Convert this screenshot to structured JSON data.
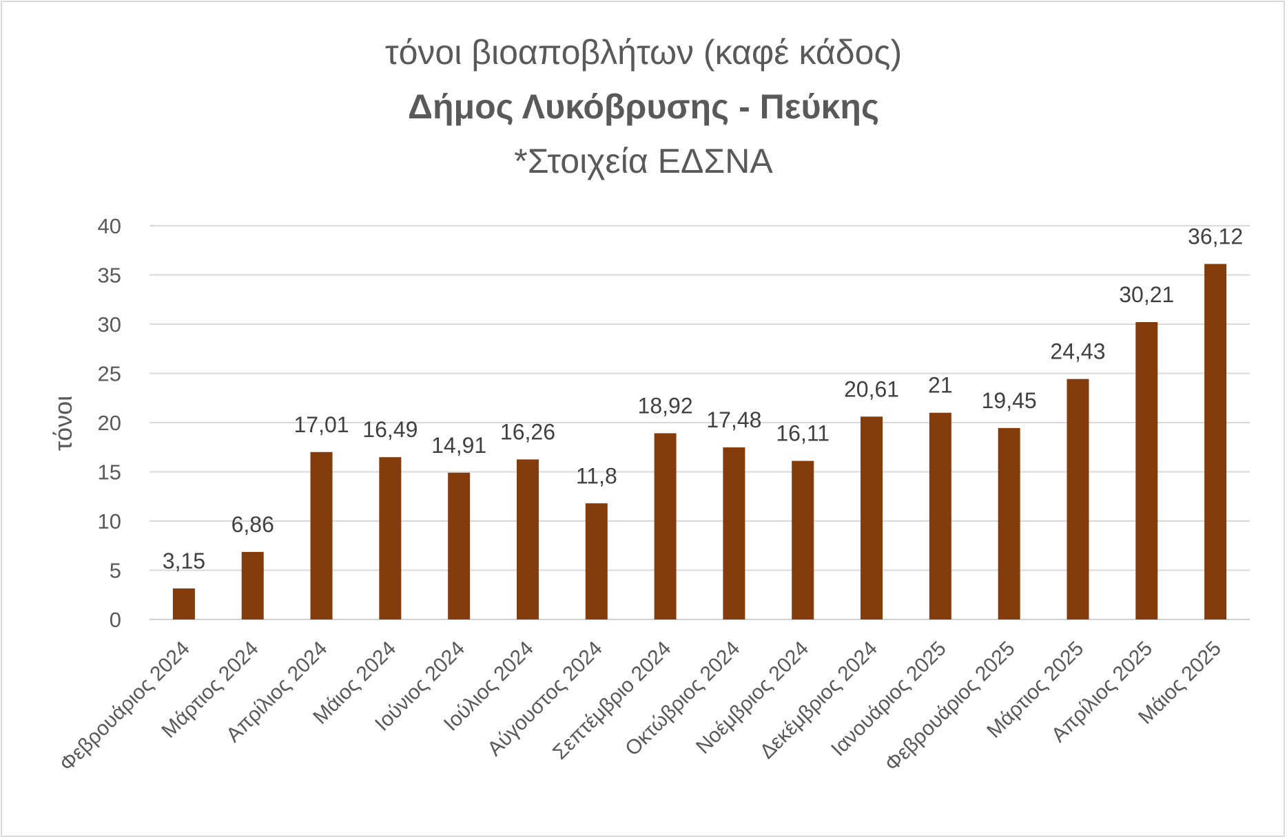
{
  "chart_data": {
    "type": "bar",
    "title_lines": [
      "τόνοι βιοαποβλήτων (καφέ κάδος)",
      "Δήμος Λυκόβρυσης - Πεύκης",
      "*Στοιχεία ΕΔΣΝΑ"
    ],
    "ylabel": "τόνοι",
    "xlabel": "",
    "ylim": [
      0,
      40
    ],
    "yticks": [
      0,
      5,
      10,
      15,
      20,
      25,
      30,
      35,
      40
    ],
    "grid": true,
    "legend": "none",
    "bar_color": "#843C0C",
    "categories": [
      "Φεβρουάριος 2024",
      "Μάρτιος 2024",
      "Απρίλιος 2024",
      "Μάιος 2024",
      "Ιούνιος 2024",
      "Ιούλιος 2024",
      "Αύγουστος 2024",
      "Σεπτέμβριο 2024",
      "Οκτώβριος 2024",
      "Νοέμβριος 2024",
      "Δεκέμβριος 2024",
      "Ιανουάριος 2025",
      "Φεβρουάριος 2025",
      "Μάρτιος 2025",
      "Απρίλιος 2025",
      "Μάιος 2025"
    ],
    "values": [
      3.15,
      6.86,
      17.01,
      16.49,
      14.91,
      16.26,
      11.8,
      18.92,
      17.48,
      16.11,
      20.61,
      21,
      19.45,
      24.43,
      30.21,
      36.12
    ],
    "data_labels": [
      "3,15",
      "6,86",
      "17,01",
      "16,49",
      "14,91",
      "16,26",
      "11,8",
      "18,92",
      "17,48",
      "16,11",
      "20,61",
      "21",
      "19,45",
      "24,43",
      "30,21",
      "36,12"
    ]
  }
}
